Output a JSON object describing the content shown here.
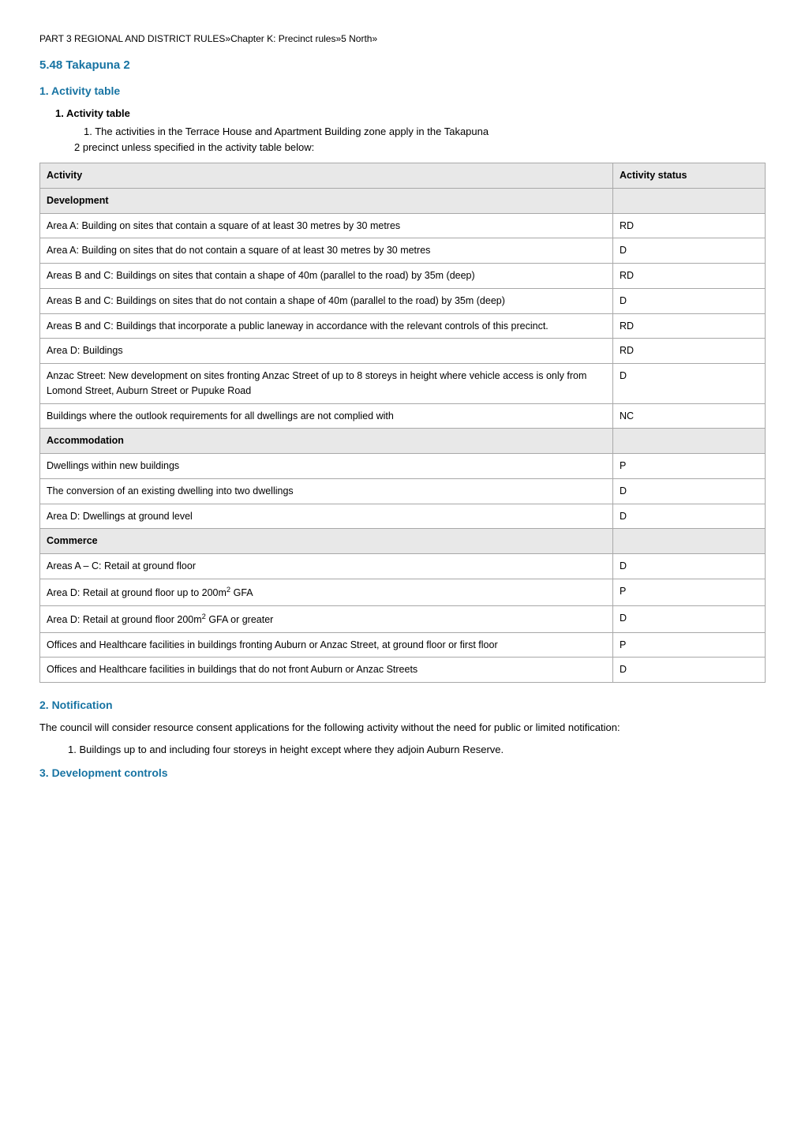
{
  "breadcrumb": "PART 3   REGIONAL AND DISTRICT RULES»Chapter K: Precinct rules»5 North»",
  "section_title": "5.48 Takapuna 2",
  "activity_heading": "1. Activity table",
  "activity_sub_heading": "1. Activity  table",
  "activity_intro_num": "1.   The activities in the Terrace House and Apartment Building zone apply in the Takapuna",
  "activity_intro_cont": "2 precinct unless specified in the activity table below:",
  "table": {
    "header_activity": "Activity",
    "header_status": "Activity status",
    "rows": [
      {
        "type": "section",
        "label": "Development"
      },
      {
        "a": "Area A: Building on sites that contain a square of at least 30 metres by 30 metres",
        "s": "RD"
      },
      {
        "a": "Area A: Building on sites that do not contain a square of at least 30 metres by 30 metres",
        "s": "D"
      },
      {
        "a": "Areas B and C: Buildings on sites that contain a shape of 40m (parallel to the road) by 35m (deep)",
        "s": "RD"
      },
      {
        "a": "Areas B and C: Buildings on sites that do not contain a shape of 40m (parallel to the road) by 35m (deep)",
        "s": "D"
      },
      {
        "a": "Areas B and C: Buildings that incorporate a public laneway in accordance with the relevant controls of this precinct.",
        "s": "RD"
      },
      {
        "a": "Area D: Buildings",
        "s": "RD"
      },
      {
        "a": "Anzac Street: New development on sites fronting Anzac Street of up to 8 storeys in height where vehicle access is only from Lomond Street, Auburn Street or Pupuke Road",
        "s": "D"
      },
      {
        "a": "Buildings where the outlook requirements for all dwellings are not complied with",
        "s": "NC"
      },
      {
        "type": "section",
        "label": "Accommodation"
      },
      {
        "a": "Dwellings within new buildings",
        "s": "P"
      },
      {
        "a": "The conversion of an existing dwelling into two dwellings",
        "s": "D"
      },
      {
        "a": "Area D: Dwellings at ground level",
        "s": "D"
      },
      {
        "type": "section",
        "label": "Commerce"
      },
      {
        "a": "Areas A – C: Retail at ground floor",
        "s": "D"
      },
      {
        "a_html": "Area D: Retail at ground floor up to 200m<sup>2</sup> GFA",
        "s": "P"
      },
      {
        "a_html": "Area D: Retail at ground floor 200m<sup>2</sup> GFA or greater",
        "s": "D"
      },
      {
        "a": "Offices and Healthcare facilities in buildings fronting Auburn or Anzac Street, at ground floor or first floor",
        "s": "P"
      },
      {
        "a": "Offices and Healthcare facilities in buildings that do not front Auburn or Anzac Streets",
        "s": "D"
      }
    ]
  },
  "notification_heading": "2.   Notification",
  "notification_text": "The council will consider resource consent applications for the following activity without the need for public or limited  notification:",
  "notification_item": "1.   Buildings up to and including four storeys in height except where they adjoin Auburn Reserve.",
  "dev_controls_heading": "3. Development controls"
}
